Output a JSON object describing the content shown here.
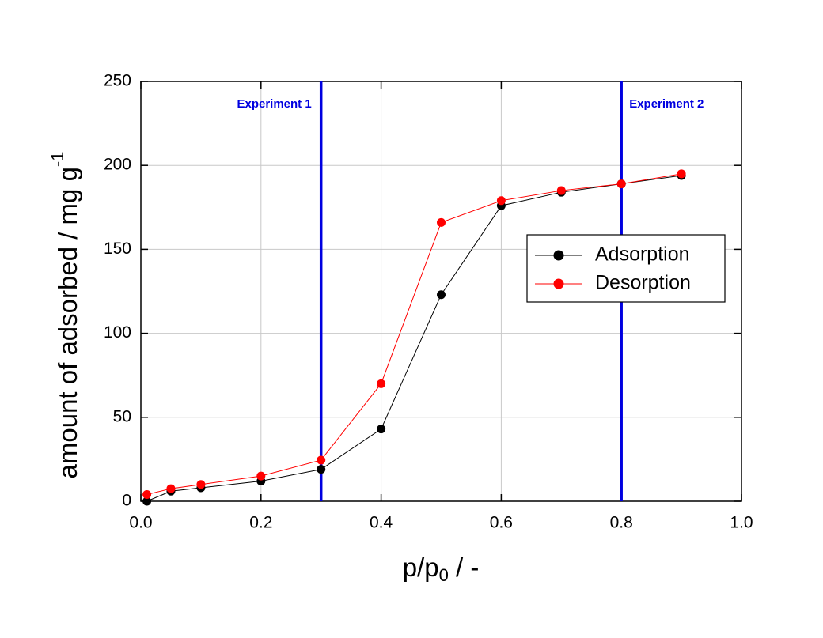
{
  "chart_data": {
    "type": "line",
    "xlabel_parts": [
      "p/p",
      "0",
      " / -"
    ],
    "ylabel_parts": [
      "amount of adsorbed / mg g",
      "-1"
    ],
    "x": [
      0.01,
      0.05,
      0.1,
      0.2,
      0.3,
      0.4,
      0.5,
      0.6,
      0.7,
      0.8,
      0.9
    ],
    "series": [
      {
        "name": "Adsorption",
        "color": "#000000",
        "values": [
          0,
          6,
          8,
          12,
          19,
          43,
          123,
          176,
          184,
          189,
          194
        ]
      },
      {
        "name": "Desorption",
        "color": "#ff0000",
        "values": [
          4,
          7.5,
          10,
          15,
          24.5,
          70,
          166,
          179,
          185,
          189,
          195
        ]
      }
    ],
    "vlines": [
      {
        "x": 0.3,
        "label": "Experiment 1"
      },
      {
        "x": 0.8,
        "label": "Experiment 2"
      }
    ],
    "vline_color": "#0000e0",
    "xlim": [
      0,
      1
    ],
    "xticks": [
      {
        "value": 0,
        "label": "0.0"
      },
      0.2,
      0.4,
      0.6,
      0.8,
      {
        "value": 1,
        "label": "1.0"
      }
    ],
    "ylim": [
      0,
      250
    ],
    "yticks": [
      0,
      50,
      100,
      150,
      200,
      250
    ],
    "grid": true,
    "legend": "right"
  }
}
